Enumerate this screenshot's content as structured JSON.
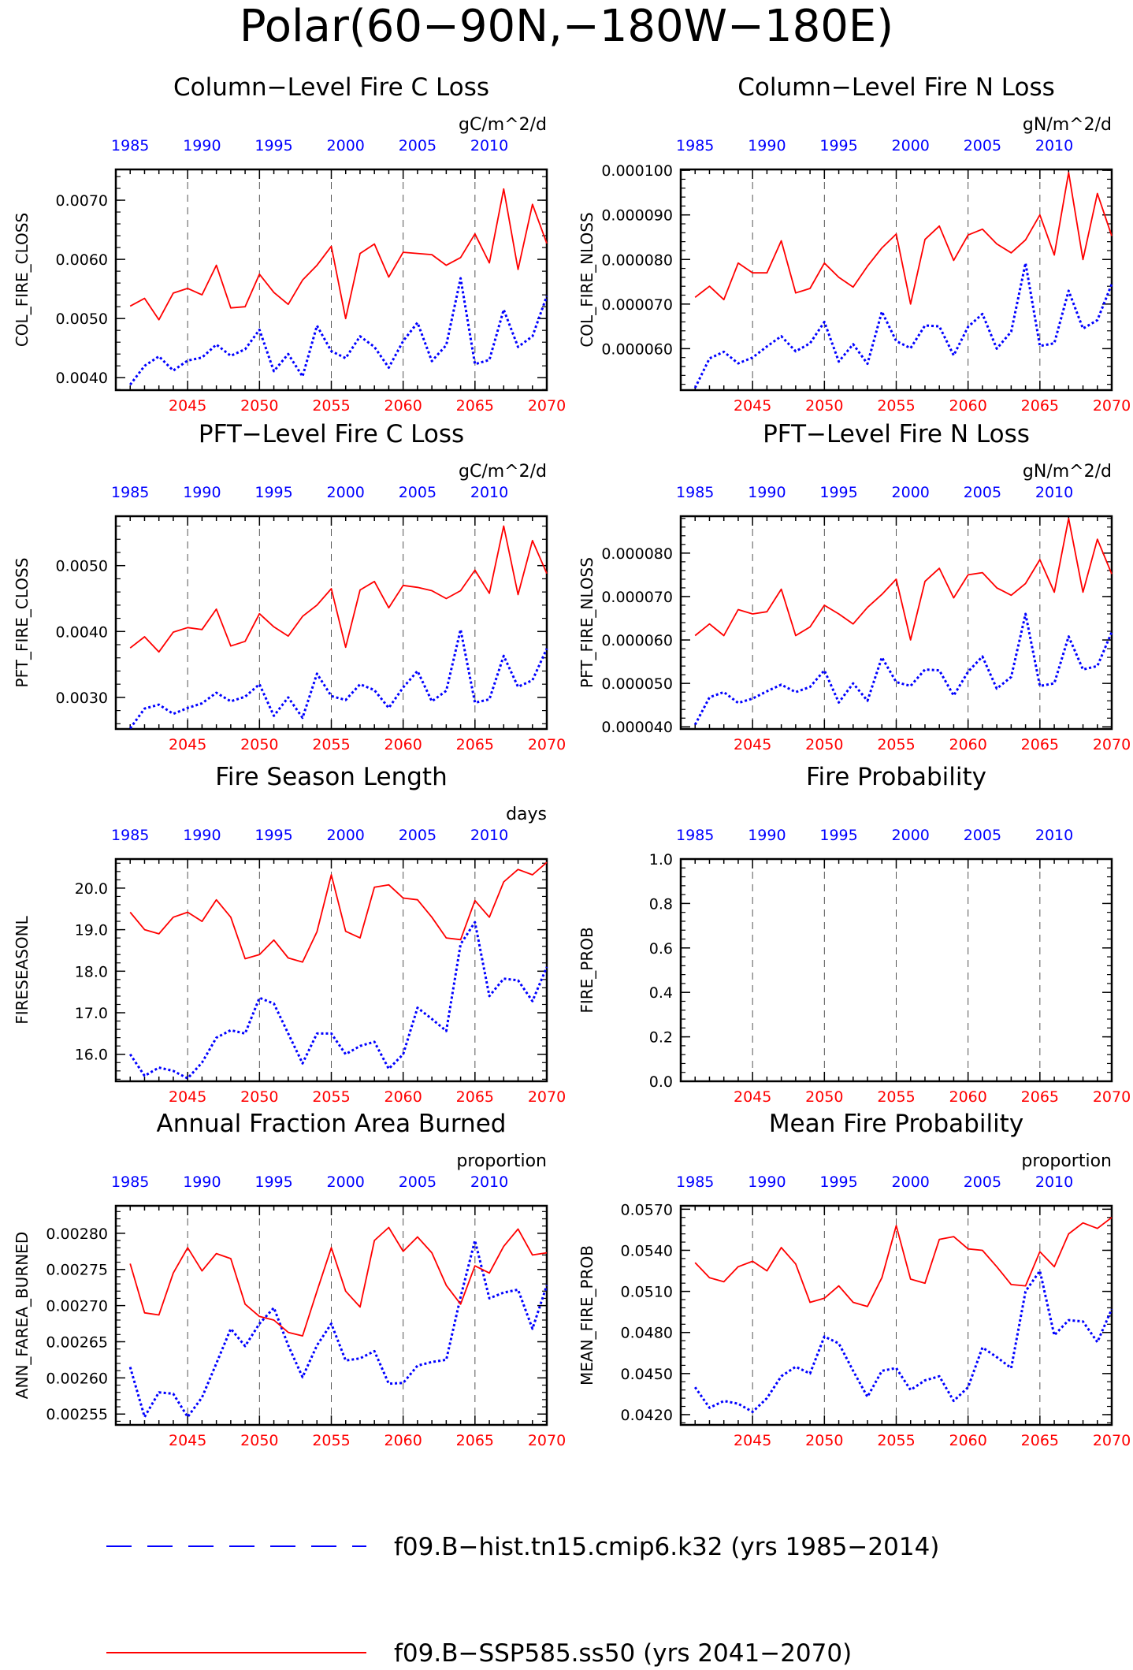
{
  "title": "Polar(60−90N,−180W−180E)",
  "legend": [
    {
      "label": "f09.B−hist.tn15.cmip6.k32 (yrs 1985−2014)",
      "color": "#0000ff",
      "style": "dashed"
    },
    {
      "label": "f09.B−SSP585.ss50 (yrs 2041−2070)",
      "color": "#ff0000",
      "style": "solid"
    }
  ],
  "chart_data": [
    {
      "type": "line",
      "title": "Column−Level Fire C Loss",
      "units": "gC/m^2/d",
      "ylabel": "COL_FIRE_CLOSS",
      "ylim": [
        0.00379,
        0.00752
      ],
      "yticks": [
        "0.0040",
        "0.0050",
        "0.0060",
        "0.0070"
      ],
      "ytick_values": [
        0.004,
        0.005,
        0.006,
        0.007
      ],
      "x_top": [
        "1985",
        "1990",
        "1995",
        "2000",
        "2005",
        "2010"
      ],
      "x_bottom": [
        "2045",
        "2050",
        "2055",
        "2060",
        "2065",
        "2070"
      ],
      "series": [
        {
          "name": "f09.B−hist.tn15.cmip6.k32 (yrs 1985−2014)",
          "color": "#0000ff",
          "style": "dotted",
          "values": [
            0.00388,
            0.0042,
            0.00436,
            0.00412,
            0.00429,
            0.00434,
            0.00456,
            0.00437,
            0.00448,
            0.00481,
            0.00411,
            0.0044,
            0.00402,
            0.00488,
            0.00445,
            0.00433,
            0.0047,
            0.00452,
            0.00417,
            0.00462,
            0.00493,
            0.00428,
            0.00455,
            0.00568,
            0.00423,
            0.0043,
            0.00515,
            0.00452,
            0.0047,
            0.00538
          ]
        },
        {
          "name": "f09.B−SSP585.ss50 (yrs 2041−2070)",
          "color": "#ff0000",
          "style": "solid",
          "values": [
            0.00521,
            0.00534,
            0.00498,
            0.00543,
            0.00551,
            0.0054,
            0.0059,
            0.00518,
            0.0052,
            0.00575,
            0.00544,
            0.00524,
            0.00565,
            0.0059,
            0.00622,
            0.005,
            0.0061,
            0.00626,
            0.0057,
            0.00612,
            0.0061,
            0.00608,
            0.0059,
            0.00603,
            0.00643,
            0.00594,
            0.00719,
            0.00583,
            0.00693,
            0.00627
          ]
        }
      ]
    },
    {
      "type": "line",
      "title": "Column−Level Fire N Loss",
      "units": "gN/m^2/d",
      "ylabel": "COL_FIRE_NLOSS",
      "ylim": [
        5.07e-05,
        0.0001002
      ],
      "yticks": [
        "0.000060",
        "0.000070",
        "0.000080",
        "0.000090",
        "0.000100"
      ],
      "ytick_values": [
        6e-05,
        7e-05,
        8e-05,
        9e-05,
        0.0001
      ],
      "x_top": [
        "1985",
        "1990",
        "1995",
        "2000",
        "2005",
        "2010"
      ],
      "x_bottom": [
        "2045",
        "2050",
        "2055",
        "2060",
        "2065",
        "2070"
      ],
      "series": [
        {
          "name": "f09.B−hist.tn15.cmip6.k32 (yrs 1985−2014)",
          "color": "#0000ff",
          "style": "dotted",
          "values": [
            5.12e-05,
            5.78e-05,
            5.93e-05,
            5.67e-05,
            5.8e-05,
            6.05e-05,
            6.28e-05,
            5.94e-05,
            6.12e-05,
            6.6e-05,
            5.71e-05,
            6.1e-05,
            5.66e-05,
            6.83e-05,
            6.17e-05,
            6.01e-05,
            6.52e-05,
            6.5e-05,
            5.85e-05,
            6.49e-05,
            6.78e-05,
            6e-05,
            6.38e-05,
            7.92e-05,
            6.06e-05,
            6.12e-05,
            7.3e-05,
            6.45e-05,
            6.64e-05,
            7.45e-05
          ]
        },
        {
          "name": "f09.B−SSP585.ss50 (yrs 2041−2070)",
          "color": "#ff0000",
          "style": "solid",
          "values": [
            7.15e-05,
            7.4e-05,
            7.1e-05,
            7.92e-05,
            7.7e-05,
            7.7e-05,
            8.42e-05,
            7.25e-05,
            7.35e-05,
            7.92e-05,
            7.6e-05,
            7.38e-05,
            7.85e-05,
            8.26e-05,
            8.57e-05,
            7e-05,
            8.45e-05,
            8.75e-05,
            7.98e-05,
            8.55e-05,
            8.68e-05,
            8.35e-05,
            8.15e-05,
            8.44e-05,
            9e-05,
            8.1e-05,
            9.95e-05,
            8e-05,
            9.48e-05,
            8.53e-05
          ]
        }
      ]
    },
    {
      "type": "line",
      "title": "PFT−Level Fire C Loss",
      "units": "gC/m^2/d",
      "ylabel": "PFT_FIRE_CLOSS",
      "ylim": [
        0.00252,
        0.00575
      ],
      "yticks": [
        "0.0030",
        "0.0040",
        "0.0050"
      ],
      "ytick_values": [
        0.003,
        0.004,
        0.005
      ],
      "x_top": [
        "1985",
        "1990",
        "1995",
        "2000",
        "2005",
        "2010"
      ],
      "x_bottom": [
        "2045",
        "2050",
        "2055",
        "2060",
        "2065",
        "2070"
      ],
      "series": [
        {
          "name": "f09.B−hist.tn15.cmip6.k32 (yrs 1985−2014)",
          "color": "#0000ff",
          "style": "dotted",
          "values": [
            0.00253,
            0.00283,
            0.00289,
            0.00275,
            0.00284,
            0.00291,
            0.00307,
            0.00294,
            0.00301,
            0.0032,
            0.00272,
            0.003,
            0.00269,
            0.00336,
            0.00302,
            0.00296,
            0.0032,
            0.00311,
            0.00284,
            0.00315,
            0.0034,
            0.00294,
            0.0031,
            0.00403,
            0.00292,
            0.00297,
            0.00363,
            0.00316,
            0.00326,
            0.00374
          ]
        },
        {
          "name": "f09.B−SSP585.ss50 (yrs 2041−2070)",
          "color": "#ff0000",
          "style": "solid",
          "values": [
            0.00375,
            0.00392,
            0.00369,
            0.00399,
            0.00406,
            0.00403,
            0.00434,
            0.00378,
            0.00385,
            0.00427,
            0.00407,
            0.00393,
            0.00423,
            0.0044,
            0.00465,
            0.00376,
            0.00463,
            0.00476,
            0.00436,
            0.0047,
            0.00467,
            0.00462,
            0.0045,
            0.00462,
            0.00493,
            0.00458,
            0.0056,
            0.00456,
            0.00538,
            0.00488
          ]
        }
      ]
    },
    {
      "type": "line",
      "title": "PFT−Level Fire N Loss",
      "units": "gN/m^2/d",
      "ylabel": "PFT_FIRE_NLOSS",
      "ylim": [
        3.95e-05,
        8.85e-05
      ],
      "yticks": [
        "0.000040",
        "0.000050",
        "0.000060",
        "0.000070",
        "0.000080"
      ],
      "ytick_values": [
        4e-05,
        5e-05,
        6e-05,
        7e-05,
        8e-05
      ],
      "x_top": [
        "1985",
        "1990",
        "1995",
        "2000",
        "2005",
        "2010"
      ],
      "x_bottom": [
        "2045",
        "2050",
        "2055",
        "2060",
        "2065",
        "2070"
      ],
      "series": [
        {
          "name": "f09.B−hist.tn15.cmip6.k32 (yrs 1985−2014)",
          "color": "#0000ff",
          "style": "dotted",
          "values": [
            4.05e-05,
            4.68e-05,
            4.8e-05,
            4.55e-05,
            4.65e-05,
            4.82e-05,
            4.97e-05,
            4.8e-05,
            4.92e-05,
            5.3e-05,
            4.56e-05,
            5e-05,
            4.6e-05,
            5.6e-05,
            5.03e-05,
            4.94e-05,
            5.32e-05,
            5.3e-05,
            4.72e-05,
            5.27e-05,
            5.62e-05,
            4.88e-05,
            5.15e-05,
            6.6e-05,
            4.94e-05,
            5e-05,
            6.08e-05,
            5.32e-05,
            5.4e-05,
            6.18e-05
          ]
        },
        {
          "name": "f09.B−SSP585.ss50 (yrs 2041−2070)",
          "color": "#ff0000",
          "style": "solid",
          "values": [
            6.1e-05,
            6.37e-05,
            6.1e-05,
            6.7e-05,
            6.6e-05,
            6.65e-05,
            7.17e-05,
            6.1e-05,
            6.3e-05,
            6.8e-05,
            6.6e-05,
            6.37e-05,
            6.75e-05,
            7.05e-05,
            7.4e-05,
            6e-05,
            7.35e-05,
            7.65e-05,
            6.97e-05,
            7.5e-05,
            7.55e-05,
            7.2e-05,
            7.03e-05,
            7.3e-05,
            7.85e-05,
            7.1e-05,
            8.8e-05,
            7.1e-05,
            8.32e-05,
            7.52e-05
          ]
        }
      ]
    },
    {
      "type": "line",
      "title": "Fire Season Length",
      "units": "days",
      "ylabel": "FIRESEASONL",
      "ylim": [
        15.35,
        20.7
      ],
      "yticks": [
        "16.0",
        "17.0",
        "18.0",
        "19.0",
        "20.0"
      ],
      "ytick_values": [
        16,
        17,
        18,
        19,
        20
      ],
      "x_top": [
        "1985",
        "1990",
        "1995",
        "2000",
        "2005",
        "2010"
      ],
      "x_bottom": [
        "2045",
        "2050",
        "2055",
        "2060",
        "2065",
        "2070"
      ],
      "series": [
        {
          "name": "f09.B−hist.tn15.cmip6.k32 (yrs 1985−2014)",
          "color": "#0000ff",
          "style": "dotted",
          "values": [
            16.0,
            15.48,
            15.68,
            15.6,
            15.42,
            15.8,
            16.4,
            16.58,
            16.5,
            17.36,
            17.22,
            16.5,
            15.78,
            16.5,
            16.5,
            16.0,
            16.2,
            16.3,
            15.65,
            16.0,
            17.12,
            16.85,
            16.56,
            18.65,
            19.18,
            17.4,
            17.82,
            17.78,
            17.28,
            18.1
          ]
        },
        {
          "name": "f09.B−SSP585.ss50 (yrs 2041−2070)",
          "color": "#ff0000",
          "style": "solid",
          "values": [
            19.42,
            19.0,
            18.9,
            19.3,
            19.42,
            19.2,
            19.72,
            19.3,
            18.3,
            18.4,
            18.75,
            18.32,
            18.22,
            18.95,
            20.32,
            18.96,
            18.8,
            20.02,
            20.08,
            19.76,
            19.72,
            19.3,
            18.8,
            18.76,
            19.7,
            19.3,
            20.15,
            20.45,
            20.32,
            20.62
          ]
        }
      ]
    },
    {
      "type": "line",
      "title": "Fire Probability",
      "units": "",
      "ylabel": "FIRE_PROB",
      "ylim": [
        0.0,
        1.0
      ],
      "yticks": [
        "0.0",
        "0.2",
        "0.4",
        "0.6",
        "0.8",
        "1.0"
      ],
      "ytick_values": [
        0.0,
        0.2,
        0.4,
        0.6,
        0.8,
        1.0
      ],
      "x_top": [
        "1985",
        "1990",
        "1995",
        "2000",
        "2005",
        "2010"
      ],
      "x_bottom": [
        "2045",
        "2050",
        "2055",
        "2060",
        "2065",
        "2070"
      ],
      "series": []
    },
    {
      "type": "line",
      "title": "Annual Fraction Area Burned",
      "units": "proportion",
      "ylabel": "ANN_FAREA_BURNED",
      "ylim": [
        0.002535,
        0.002838
      ],
      "yticks": [
        "0.00255",
        "0.00260",
        "0.00265",
        "0.00270",
        "0.00275",
        "0.00280"
      ],
      "ytick_values": [
        0.00255,
        0.0026,
        0.00265,
        0.0027,
        0.00275,
        0.0028
      ],
      "x_top": [
        "1985",
        "1990",
        "1995",
        "2000",
        "2005",
        "2010"
      ],
      "x_bottom": [
        "2045",
        "2050",
        "2055",
        "2060",
        "2065",
        "2070"
      ],
      "series": [
        {
          "name": "f09.B−hist.tn15.cmip6.k32 (yrs 1985−2014)",
          "color": "#0000ff",
          "style": "dotted",
          "values": [
            0.002615,
            0.002546,
            0.00258,
            0.002578,
            0.002546,
            0.002573,
            0.00262,
            0.002668,
            0.002644,
            0.002675,
            0.002697,
            0.002645,
            0.002601,
            0.002645,
            0.002675,
            0.002624,
            0.002627,
            0.002637,
            0.002592,
            0.002593,
            0.002617,
            0.002622,
            0.002625,
            0.002712,
            0.00279,
            0.00271,
            0.002718,
            0.002722,
            0.002668,
            0.002728
          ]
        },
        {
          "name": "f09.B−SSP585.ss50 (yrs 2041−2070)",
          "color": "#ff0000",
          "style": "solid",
          "values": [
            0.002758,
            0.00269,
            0.002687,
            0.002745,
            0.00278,
            0.002748,
            0.002772,
            0.002765,
            0.002702,
            0.002685,
            0.00268,
            0.002663,
            0.002658,
            0.00272,
            0.00278,
            0.00272,
            0.002698,
            0.00279,
            0.002808,
            0.002775,
            0.002795,
            0.002773,
            0.002728,
            0.002702,
            0.002755,
            0.002745,
            0.002782,
            0.002806,
            0.00277,
            0.002773
          ]
        }
      ]
    },
    {
      "type": "line",
      "title": "Mean Fire Probability",
      "units": "proportion",
      "ylabel": "MEAN_FIRE_PROB",
      "ylim": [
        0.04125,
        0.05725
      ],
      "yticks": [
        "0.0420",
        "0.0450",
        "0.0480",
        "0.0510",
        "0.0540",
        "0.0570"
      ],
      "ytick_values": [
        0.042,
        0.045,
        0.048,
        0.051,
        0.054,
        0.057
      ],
      "x_top": [
        "1985",
        "1990",
        "1995",
        "2000",
        "2005",
        "2010"
      ],
      "x_bottom": [
        "2045",
        "2050",
        "2055",
        "2060",
        "2065",
        "2070"
      ],
      "series": [
        {
          "name": "f09.B−hist.tn15.cmip6.k32 (yrs 1985−2014)",
          "color": "#0000ff",
          "style": "dotted",
          "values": [
            0.044,
            0.0425,
            0.043,
            0.0428,
            0.0422,
            0.0432,
            0.0448,
            0.0455,
            0.045,
            0.0477,
            0.0472,
            0.0452,
            0.0433,
            0.0452,
            0.0454,
            0.0438,
            0.0445,
            0.0448,
            0.043,
            0.044,
            0.0469,
            0.0462,
            0.0454,
            0.051,
            0.0525,
            0.0478,
            0.0489,
            0.0488,
            0.0473,
            0.0497
          ]
        },
        {
          "name": "f09.B−SSP585.ss50 (yrs 2041−2070)",
          "color": "#ff0000",
          "style": "solid",
          "values": [
            0.0531,
            0.052,
            0.0517,
            0.0528,
            0.0532,
            0.0525,
            0.0542,
            0.053,
            0.0502,
            0.0505,
            0.0514,
            0.0502,
            0.0499,
            0.052,
            0.0558,
            0.0519,
            0.0516,
            0.0548,
            0.055,
            0.0541,
            0.054,
            0.0528,
            0.0515,
            0.0514,
            0.0539,
            0.0528,
            0.0552,
            0.056,
            0.0556,
            0.0564
          ]
        }
      ]
    }
  ]
}
